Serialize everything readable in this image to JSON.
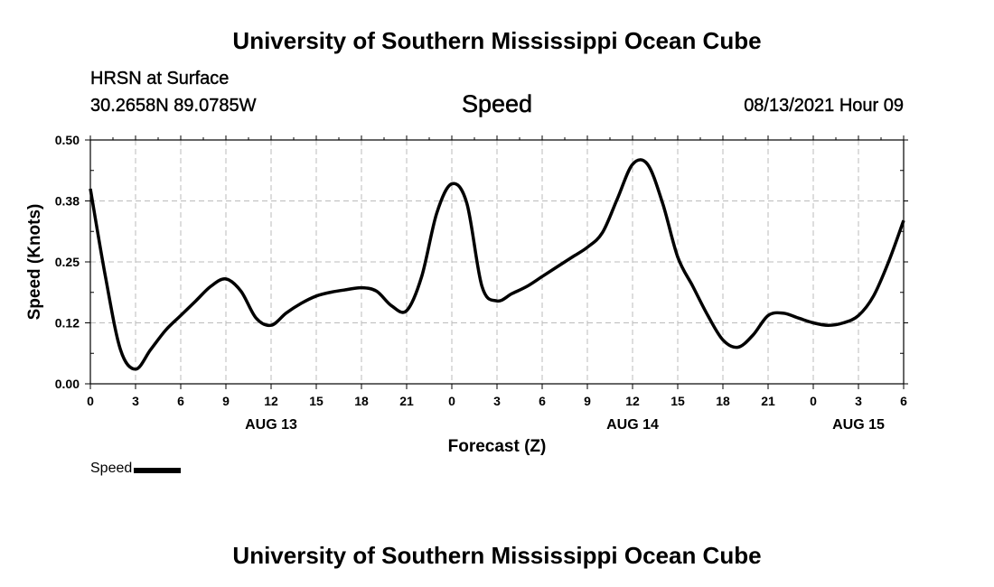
{
  "header": {
    "title": "University of Southern Mississippi Ocean Cube",
    "station": "HRSN at Surface",
    "coords": "30.2658N  89.0785W",
    "subtitle": "Speed",
    "datetime": "08/13/2021 Hour 09"
  },
  "footer": {
    "title": "University of Southern Mississippi Ocean Cube"
  },
  "legend": {
    "label": "Speed"
  },
  "chart_data": {
    "type": "line",
    "title": "Speed",
    "xlabel": "Forecast (Z)",
    "ylabel": "Speed (Knots)",
    "xlim": [
      0,
      54
    ],
    "ylim": [
      0,
      0.5
    ],
    "grid": true,
    "line_color": "#000000",
    "grid_color": "#bbbbbb",
    "yticks": [
      0,
      0.125,
      0.25,
      0.375,
      0.5
    ],
    "ytick_labels": [
      "0.00",
      "0.12",
      "0.25",
      "0.38",
      "0.50"
    ],
    "xticks": [
      0,
      3,
      6,
      9,
      12,
      15,
      18,
      21,
      24,
      27,
      30,
      33,
      36,
      39,
      42,
      45,
      48,
      51,
      54
    ],
    "xtick_labels": [
      "0",
      "3",
      "6",
      "9",
      "12",
      "15",
      "18",
      "21",
      "0",
      "3",
      "6",
      "9",
      "12",
      "15",
      "18",
      "21",
      "0",
      "3",
      "6"
    ],
    "date_labels": [
      {
        "x": 12,
        "label": "AUG 13"
      },
      {
        "x": 36,
        "label": "AUG 14"
      },
      {
        "x": 51,
        "label": "AUG 15"
      }
    ],
    "series": [
      {
        "name": "Speed",
        "x": [
          0,
          1,
          2,
          3,
          4,
          5,
          6,
          7,
          8,
          9,
          10,
          11,
          12,
          13,
          14,
          15,
          16,
          17,
          18,
          19,
          20,
          21,
          22,
          23,
          24,
          25,
          26,
          27,
          28,
          29,
          30,
          31,
          32,
          33,
          34,
          35,
          36,
          37,
          38,
          39,
          40,
          41,
          42,
          43,
          44,
          45,
          46,
          47,
          48,
          49,
          50,
          51,
          52,
          53,
          54
        ],
        "values": [
          0.4,
          0.22,
          0.07,
          0.03,
          0.07,
          0.11,
          0.14,
          0.17,
          0.2,
          0.215,
          0.19,
          0.135,
          0.12,
          0.145,
          0.165,
          0.18,
          0.188,
          0.193,
          0.197,
          0.19,
          0.16,
          0.15,
          0.22,
          0.35,
          0.41,
          0.37,
          0.2,
          0.17,
          0.185,
          0.2,
          0.22,
          0.24,
          0.26,
          0.28,
          0.31,
          0.38,
          0.45,
          0.45,
          0.37,
          0.26,
          0.2,
          0.14,
          0.09,
          0.075,
          0.1,
          0.14,
          0.145,
          0.135,
          0.125,
          0.12,
          0.125,
          0.14,
          0.18,
          0.25,
          0.335
        ]
      }
    ]
  }
}
